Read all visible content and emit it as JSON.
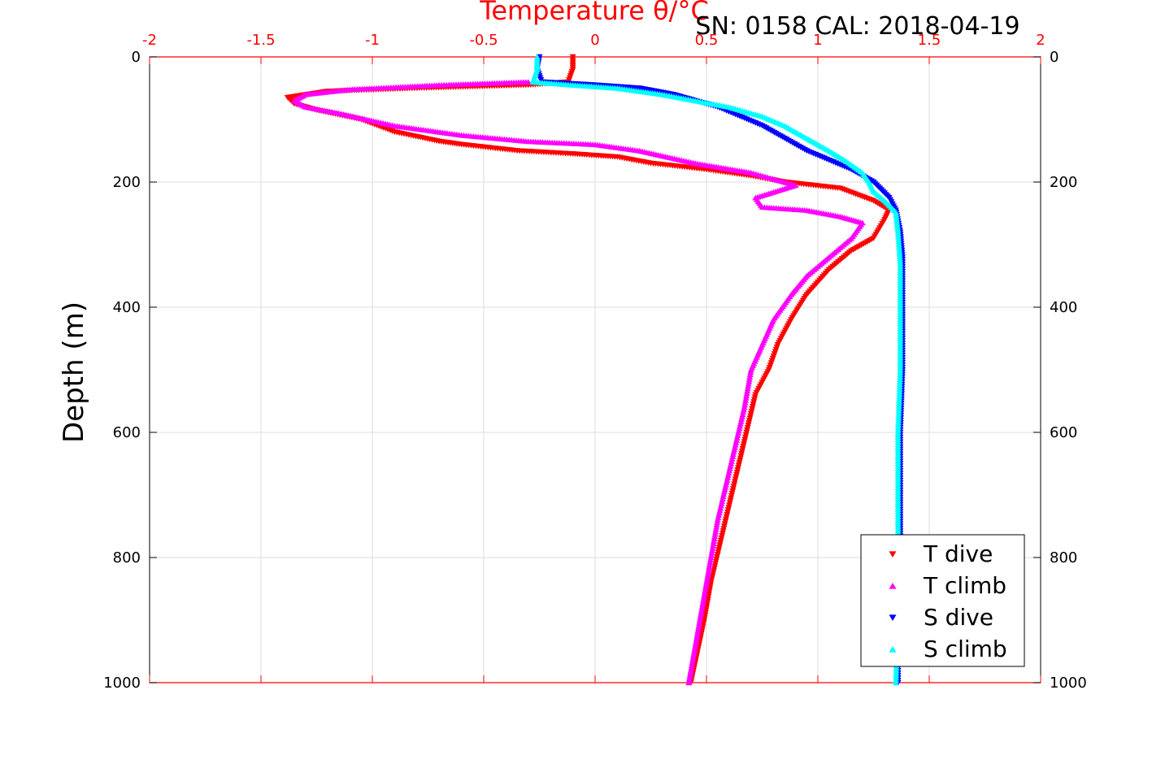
{
  "chart_data": {
    "type": "scatter",
    "title": "SN: 0158  CAL: 2018-04-19",
    "top_axis_label": "Temperature θ/°C",
    "ylabel": "Depth (m)",
    "xlim": [
      -2,
      2
    ],
    "ylim": [
      0,
      1000
    ],
    "y_reversed": true,
    "x_ticks": [
      "-2",
      "-1.5",
      "-1",
      "-0.5",
      "0",
      "0.5",
      "1",
      "1.5",
      "2"
    ],
    "y_ticks": [
      "0",
      "200",
      "400",
      "600",
      "800",
      "1000"
    ],
    "grid": true,
    "legend_position": "bottom-right",
    "series": [
      {
        "name": "T dive",
        "color": "#ff0000",
        "marker": "triangle-down",
        "points": [
          [
            -0.1,
            0
          ],
          [
            -0.1,
            20
          ],
          [
            -0.12,
            40
          ],
          [
            -0.3,
            45
          ],
          [
            -0.8,
            50
          ],
          [
            -1.2,
            55
          ],
          [
            -1.38,
            65
          ],
          [
            -1.35,
            75
          ],
          [
            -1.25,
            85
          ],
          [
            -1.05,
            100
          ],
          [
            -0.9,
            120
          ],
          [
            -0.7,
            135
          ],
          [
            -0.6,
            140
          ],
          [
            -0.35,
            150
          ],
          [
            -0.1,
            155
          ],
          [
            0.1,
            160
          ],
          [
            0.25,
            170
          ],
          [
            0.5,
            180
          ],
          [
            0.7,
            190
          ],
          [
            0.85,
            200
          ],
          [
            1.1,
            210
          ],
          [
            1.25,
            230
          ],
          [
            1.32,
            245
          ],
          [
            1.3,
            260
          ],
          [
            1.25,
            290
          ],
          [
            1.15,
            310
          ],
          [
            1.05,
            340
          ],
          [
            0.95,
            380
          ],
          [
            0.88,
            420
          ],
          [
            0.82,
            460
          ],
          [
            0.78,
            500
          ],
          [
            0.72,
            540
          ],
          [
            0.68,
            600
          ],
          [
            0.64,
            660
          ],
          [
            0.6,
            720
          ],
          [
            0.56,
            780
          ],
          [
            0.52,
            840
          ],
          [
            0.49,
            900
          ],
          [
            0.46,
            950
          ],
          [
            0.43,
            1000
          ]
        ]
      },
      {
        "name": "T climb",
        "color": "#ff00ff",
        "marker": "triangle-up",
        "points": [
          [
            -0.3,
            40
          ],
          [
            -0.7,
            45
          ],
          [
            -1.1,
            52
          ],
          [
            -1.3,
            60
          ],
          [
            -1.35,
            70
          ],
          [
            -1.3,
            80
          ],
          [
            -1.15,
            90
          ],
          [
            -0.9,
            110
          ],
          [
            -0.6,
            125
          ],
          [
            -0.3,
            135
          ],
          [
            0.0,
            140
          ],
          [
            0.2,
            150
          ],
          [
            0.45,
            170
          ],
          [
            0.7,
            185
          ],
          [
            0.9,
            205
          ],
          [
            0.72,
            225
          ],
          [
            0.75,
            240
          ],
          [
            0.95,
            245
          ],
          [
            1.1,
            255
          ],
          [
            1.2,
            265
          ],
          [
            1.15,
            290
          ],
          [
            1.05,
            320
          ],
          [
            0.95,
            350
          ],
          [
            0.88,
            380
          ],
          [
            0.8,
            420
          ],
          [
            0.75,
            460
          ],
          [
            0.7,
            500
          ],
          [
            0.67,
            560
          ],
          [
            0.63,
            620
          ],
          [
            0.59,
            680
          ],
          [
            0.55,
            740
          ],
          [
            0.52,
            800
          ],
          [
            0.49,
            860
          ],
          [
            0.46,
            920
          ],
          [
            0.43,
            980
          ],
          [
            0.42,
            1000
          ]
        ]
      },
      {
        "name": "S dive",
        "color": "#0000ff",
        "marker": "triangle-down",
        "points": [
          [
            -0.25,
            0
          ],
          [
            -0.26,
            20
          ],
          [
            -0.24,
            40
          ],
          [
            0.0,
            45
          ],
          [
            0.2,
            50
          ],
          [
            0.35,
            60
          ],
          [
            0.45,
            70
          ],
          [
            0.55,
            80
          ],
          [
            0.65,
            95
          ],
          [
            0.75,
            110
          ],
          [
            0.85,
            130
          ],
          [
            0.95,
            150
          ],
          [
            1.05,
            165
          ],
          [
            1.15,
            180
          ],
          [
            1.25,
            200
          ],
          [
            1.32,
            225
          ],
          [
            1.35,
            245
          ],
          [
            1.37,
            280
          ],
          [
            1.38,
            320
          ],
          [
            1.38,
            400
          ],
          [
            1.38,
            500
          ],
          [
            1.37,
            600
          ],
          [
            1.37,
            700
          ],
          [
            1.37,
            800
          ],
          [
            1.36,
            900
          ],
          [
            1.36,
            1000
          ]
        ]
      },
      {
        "name": "S climb",
        "color": "#00ffff",
        "marker": "triangle-up",
        "points": [
          [
            -0.26,
            0
          ],
          [
            -0.26,
            20
          ],
          [
            -0.28,
            40
          ],
          [
            -0.1,
            45
          ],
          [
            0.1,
            50
          ],
          [
            0.3,
            60
          ],
          [
            0.45,
            70
          ],
          [
            0.6,
            80
          ],
          [
            0.75,
            95
          ],
          [
            0.85,
            110
          ],
          [
            0.95,
            130
          ],
          [
            1.05,
            150
          ],
          [
            1.12,
            165
          ],
          [
            1.2,
            185
          ],
          [
            1.23,
            200
          ],
          [
            1.25,
            215
          ],
          [
            1.3,
            230
          ],
          [
            1.35,
            248
          ],
          [
            1.36,
            280
          ],
          [
            1.37,
            330
          ],
          [
            1.37,
            400
          ],
          [
            1.37,
            500
          ],
          [
            1.36,
            600
          ],
          [
            1.36,
            700
          ],
          [
            1.36,
            800
          ],
          [
            1.36,
            900
          ],
          [
            1.35,
            1000
          ]
        ]
      }
    ]
  }
}
